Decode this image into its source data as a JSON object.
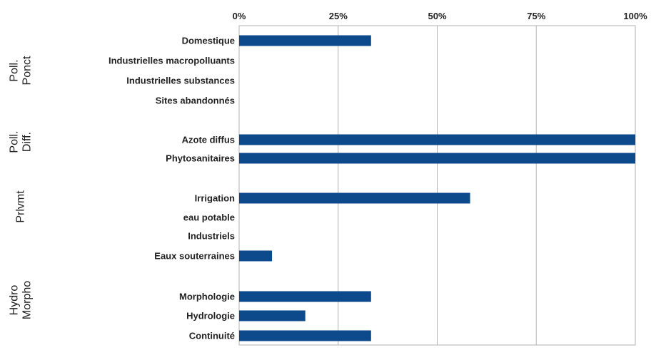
{
  "chart_data": {
    "type": "bar",
    "orientation": "horizontal",
    "x_ticks": [
      "0%",
      "25%",
      "50%",
      "75%",
      "100%"
    ],
    "xlim": [
      0,
      100
    ],
    "grid": true,
    "bar_color": "#0d4a8c",
    "groups": [
      {
        "label": "Poll. Ponct",
        "lines": [
          "Poll.",
          "Ponct"
        ],
        "categories": [
          "Domestique",
          "Industrielles macropolluants",
          "Industrielles substances",
          "Sites abandonnés"
        ],
        "values": [
          33.3,
          0,
          0,
          0
        ]
      },
      {
        "label": "Poll. Diff.",
        "lines": [
          "Poll.",
          "Diff."
        ],
        "categories": [
          "Azote diffus",
          "Phytosanitaires"
        ],
        "values": [
          100,
          100
        ]
      },
      {
        "label": "Prlvmt",
        "lines": [
          "Prlvmt"
        ],
        "categories": [
          "Irrigation",
          "eau potable",
          "Industriels",
          "Eaux souterraines"
        ],
        "values": [
          58.3,
          0,
          0,
          8.3
        ]
      },
      {
        "label": "Hydro Morpho",
        "lines": [
          "Hydro",
          "Morpho"
        ],
        "categories": [
          "Morphologie",
          "Hydrologie",
          "Continuité"
        ],
        "values": [
          33.3,
          16.7,
          33.3
        ]
      }
    ]
  }
}
